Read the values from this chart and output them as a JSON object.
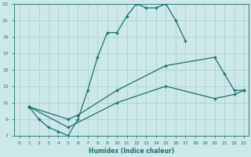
{
  "xlabel": "Humidex (Indice chaleur)",
  "bg_color": "#cce8e8",
  "grid_color": "#aacccc",
  "line_color": "#1a7070",
  "xlim": [
    -0.5,
    23.5
  ],
  "ylim": [
    7,
    23
  ],
  "yticks": [
    7,
    9,
    11,
    13,
    15,
    17,
    19,
    21,
    23
  ],
  "xticks": [
    0,
    1,
    2,
    3,
    4,
    5,
    6,
    7,
    8,
    9,
    10,
    11,
    12,
    13,
    14,
    15,
    16,
    17,
    18,
    19,
    20,
    21,
    22,
    23
  ],
  "line1_x": [
    1,
    2,
    3,
    4,
    5,
    6,
    7,
    8,
    9,
    10,
    11,
    12,
    13,
    14,
    15,
    16,
    17
  ],
  "line1_y": [
    10.5,
    9.0,
    8.0,
    7.5,
    7.0,
    9.0,
    12.5,
    16.5,
    19.5,
    19.5,
    21.5,
    23.0,
    22.5,
    22.5,
    23.0,
    21.0,
    18.5
  ],
  "line2_x": [
    1,
    5,
    6,
    10,
    15,
    20,
    21,
    22,
    23
  ],
  "line2_y": [
    10.5,
    9.0,
    9.5,
    12.5,
    15.5,
    16.5,
    14.5,
    12.5,
    12.5
  ],
  "line3_x": [
    1,
    5,
    10,
    15,
    20,
    22,
    23
  ],
  "line3_y": [
    10.5,
    8.0,
    11.0,
    13.0,
    11.5,
    12.0,
    12.5
  ]
}
